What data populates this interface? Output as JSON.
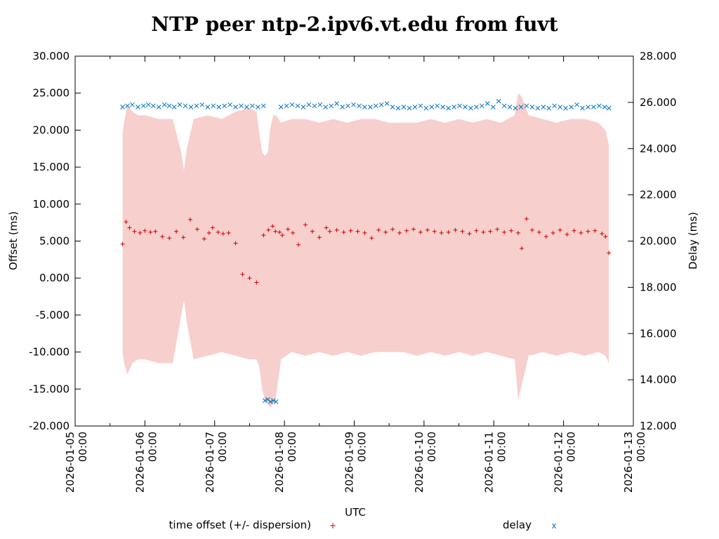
{
  "chart_data": {
    "type": "scatter",
    "title": "NTP peer ntp-2.ipv6.vt.edu from fuvt",
    "xlabel": "UTC",
    "ylabel": "Offset (ms)",
    "y2label": "Delay (ms)",
    "xlim": [
      0,
      8
    ],
    "ylim": [
      -20,
      30
    ],
    "y2lim": [
      12,
      28
    ],
    "x_ticks": [
      {
        "day": 0,
        "date": "2026-01-05",
        "time": "00:00"
      },
      {
        "day": 1,
        "date": "2026-01-06",
        "time": "00:00"
      },
      {
        "day": 2,
        "date": "2026-01-07",
        "time": "00:00"
      },
      {
        "day": 3,
        "date": "2026-01-08",
        "time": "00:00"
      },
      {
        "day": 4,
        "date": "2026-01-09",
        "time": "00:00"
      },
      {
        "day": 5,
        "date": "2026-01-10",
        "time": "00:00"
      },
      {
        "day": 6,
        "date": "2026-01-11",
        "time": "00:00"
      },
      {
        "day": 7,
        "date": "2026-01-12",
        "time": "00:00"
      },
      {
        "day": 8,
        "date": "2026-01-13",
        "time": "00:00"
      }
    ],
    "y_ticks": [
      "-20.000",
      "-15.000",
      "-10.000",
      "-5.000",
      "0.000",
      "5.000",
      "10.000",
      "15.000",
      "20.000",
      "25.000",
      "30.000"
    ],
    "y2_ticks": [
      "12.000",
      "14.000",
      "16.000",
      "18.000",
      "20.000",
      "22.000",
      "24.000",
      "26.000",
      "28.000"
    ],
    "legend": [
      {
        "label": "time offset (+/- dispersion)",
        "marker": "+",
        "color": "#cc0000"
      },
      {
        "label": "delay",
        "marker": "x",
        "color": "#0070c0"
      }
    ],
    "colors": {
      "offset": "#cc0000",
      "delay": "#0070c0",
      "dispersion_band": "#f7cfcd"
    },
    "series": [
      {
        "name": "time offset",
        "y_axis": "left",
        "x": [
          0.68,
          0.73,
          0.78,
          0.85,
          0.93,
          1.0,
          1.08,
          1.15,
          1.25,
          1.35,
          1.45,
          1.55,
          1.65,
          1.75,
          1.85,
          1.92,
          1.97,
          2.05,
          2.12,
          2.2,
          2.3,
          2.4,
          2.5,
          2.6,
          2.7,
          2.77,
          2.83,
          2.87,
          2.93,
          2.97,
          3.05,
          3.12,
          3.2,
          3.3,
          3.4,
          3.5,
          3.6,
          3.65,
          3.75,
          3.85,
          3.95,
          4.05,
          4.15,
          4.25,
          4.35,
          4.45,
          4.55,
          4.65,
          4.75,
          4.85,
          4.95,
          5.05,
          5.15,
          5.25,
          5.35,
          5.45,
          5.55,
          5.65,
          5.75,
          5.85,
          5.95,
          6.05,
          6.15,
          6.25,
          6.35,
          6.4,
          6.47,
          6.55,
          6.65,
          6.75,
          6.85,
          6.95,
          7.05,
          7.15,
          7.25,
          7.35,
          7.45,
          7.55,
          7.6,
          7.65
        ],
        "values": [
          4.6,
          7.6,
          6.8,
          6.3,
          6.1,
          6.4,
          6.2,
          6.3,
          5.6,
          5.4,
          6.3,
          5.5,
          7.9,
          6.6,
          5.3,
          6.1,
          6.8,
          6.2,
          6.0,
          6.1,
          4.7,
          0.5,
          0.0,
          -0.6,
          5.8,
          6.5,
          7.0,
          6.3,
          6.2,
          5.8,
          6.6,
          6.1,
          4.5,
          7.2,
          6.3,
          5.5,
          6.8,
          6.3,
          6.5,
          6.2,
          6.4,
          6.3,
          6.1,
          5.4,
          6.5,
          6.2,
          6.6,
          6.1,
          6.4,
          6.6,
          6.2,
          6.5,
          6.3,
          6.1,
          6.2,
          6.5,
          6.3,
          6.0,
          6.4,
          6.2,
          6.3,
          6.6,
          6.2,
          6.4,
          6.1,
          4.0,
          8.0,
          6.5,
          6.2,
          5.6,
          6.1,
          6.5,
          5.9,
          6.4,
          6.1,
          6.3,
          6.4,
          6.0,
          5.6,
          3.4
        ]
      },
      {
        "name": "delay",
        "y_axis": "right",
        "x": [
          0.68,
          0.75,
          0.82,
          0.9,
          0.98,
          1.05,
          1.12,
          1.2,
          1.28,
          1.35,
          1.42,
          1.5,
          1.58,
          1.66,
          1.74,
          1.82,
          1.9,
          1.98,
          2.06,
          2.14,
          2.22,
          2.3,
          2.38,
          2.46,
          2.54,
          2.62,
          2.7,
          2.72,
          2.76,
          2.8,
          2.84,
          2.88,
          2.95,
          3.03,
          3.11,
          3.19,
          3.27,
          3.35,
          3.43,
          3.51,
          3.59,
          3.67,
          3.75,
          3.83,
          3.91,
          3.99,
          4.07,
          4.15,
          4.23,
          4.31,
          4.39,
          4.47,
          4.55,
          4.63,
          4.71,
          4.79,
          4.87,
          4.95,
          5.03,
          5.11,
          5.19,
          5.27,
          5.35,
          5.43,
          5.51,
          5.59,
          5.67,
          5.75,
          5.83,
          5.91,
          5.99,
          6.07,
          6.15,
          6.23,
          6.31,
          6.39,
          6.47,
          6.55,
          6.63,
          6.71,
          6.79,
          6.87,
          6.95,
          7.03,
          7.11,
          7.19,
          7.27,
          7.35,
          7.43,
          7.51,
          7.59,
          7.65
        ],
        "values": [
          25.8,
          25.85,
          25.9,
          25.8,
          25.85,
          25.9,
          25.85,
          25.8,
          25.9,
          25.85,
          25.8,
          25.9,
          25.85,
          25.8,
          25.85,
          25.9,
          25.8,
          25.85,
          25.8,
          25.85,
          25.9,
          25.8,
          25.85,
          25.8,
          25.85,
          25.8,
          25.85,
          13.1,
          13.15,
          13.05,
          13.1,
          13.05,
          25.8,
          25.85,
          25.9,
          25.85,
          25.8,
          25.9,
          25.85,
          25.9,
          25.8,
          25.85,
          25.95,
          25.8,
          25.85,
          25.9,
          25.85,
          25.8,
          25.8,
          25.85,
          25.9,
          25.95,
          25.8,
          25.75,
          25.8,
          25.75,
          25.8,
          25.85,
          25.75,
          25.8,
          25.85,
          25.8,
          25.75,
          25.8,
          25.85,
          25.8,
          25.75,
          25.8,
          25.85,
          25.95,
          25.8,
          26.05,
          25.85,
          25.8,
          25.75,
          25.8,
          25.85,
          25.8,
          25.75,
          25.8,
          25.75,
          25.85,
          25.8,
          25.75,
          25.8,
          25.9,
          25.75,
          25.8,
          25.8,
          25.85,
          25.8,
          25.75
        ]
      },
      {
        "name": "dispersion upper",
        "y_axis": "left",
        "x": [
          0.68,
          0.7,
          0.75,
          0.82,
          0.9,
          1.0,
          1.2,
          1.4,
          1.52,
          1.56,
          1.6,
          1.7,
          1.9,
          2.1,
          2.3,
          2.5,
          2.6,
          2.64,
          2.68,
          2.72,
          2.76,
          2.8,
          2.84,
          2.88,
          2.95,
          3.1,
          3.3,
          3.5,
          3.7,
          3.9,
          4.1,
          4.3,
          4.5,
          4.7,
          4.9,
          5.1,
          5.3,
          5.5,
          5.7,
          5.9,
          6.1,
          6.3,
          6.35,
          6.4,
          6.5,
          6.7,
          6.9,
          7.1,
          7.3,
          7.5,
          7.6,
          7.65
        ],
        "values": [
          19.5,
          21.0,
          23.5,
          22.5,
          22.0,
          22.0,
          21.5,
          21.5,
          17.0,
          14.5,
          17.5,
          21.5,
          22.0,
          21.5,
          22.5,
          23.0,
          22.5,
          19.5,
          17.0,
          16.5,
          17.0,
          20.5,
          22.0,
          22.0,
          21.0,
          21.5,
          21.5,
          21.0,
          21.5,
          21.0,
          21.5,
          21.5,
          21.0,
          21.0,
          21.0,
          21.5,
          21.0,
          21.5,
          21.0,
          21.5,
          21.0,
          22.0,
          25.0,
          24.5,
          22.0,
          21.5,
          21.0,
          21.5,
          21.5,
          21.0,
          20.0,
          18.0
        ]
      },
      {
        "name": "dispersion lower",
        "y_axis": "left",
        "x": [
          0.68,
          0.7,
          0.75,
          0.82,
          0.9,
          1.0,
          1.2,
          1.4,
          1.52,
          1.56,
          1.6,
          1.7,
          1.9,
          2.1,
          2.3,
          2.5,
          2.6,
          2.64,
          2.68,
          2.72,
          2.76,
          2.8,
          2.84,
          2.88,
          2.95,
          3.1,
          3.3,
          3.5,
          3.7,
          3.9,
          4.1,
          4.3,
          4.5,
          4.7,
          4.9,
          5.1,
          5.3,
          5.5,
          5.7,
          5.9,
          6.1,
          6.3,
          6.35,
          6.4,
          6.5,
          6.7,
          6.9,
          7.1,
          7.3,
          7.5,
          7.6,
          7.65
        ],
        "values": [
          -10.0,
          -11.5,
          -13.0,
          -11.5,
          -11.0,
          -11.0,
          -11.5,
          -11.5,
          -5.0,
          -3.0,
          -6.0,
          -11.0,
          -10.5,
          -10.0,
          -10.5,
          -11.0,
          -11.0,
          -12.0,
          -15.0,
          -16.5,
          -17.0,
          -17.5,
          -17.0,
          -16.0,
          -11.0,
          -10.0,
          -10.5,
          -10.0,
          -10.5,
          -10.0,
          -10.5,
          -10.0,
          -10.0,
          -10.0,
          -10.5,
          -10.0,
          -10.5,
          -10.0,
          -10.5,
          -10.0,
          -10.5,
          -11.0,
          -16.5,
          -14.5,
          -10.5,
          -10.0,
          -10.5,
          -10.0,
          -10.5,
          -10.0,
          -10.5,
          -11.5
        ]
      }
    ]
  }
}
